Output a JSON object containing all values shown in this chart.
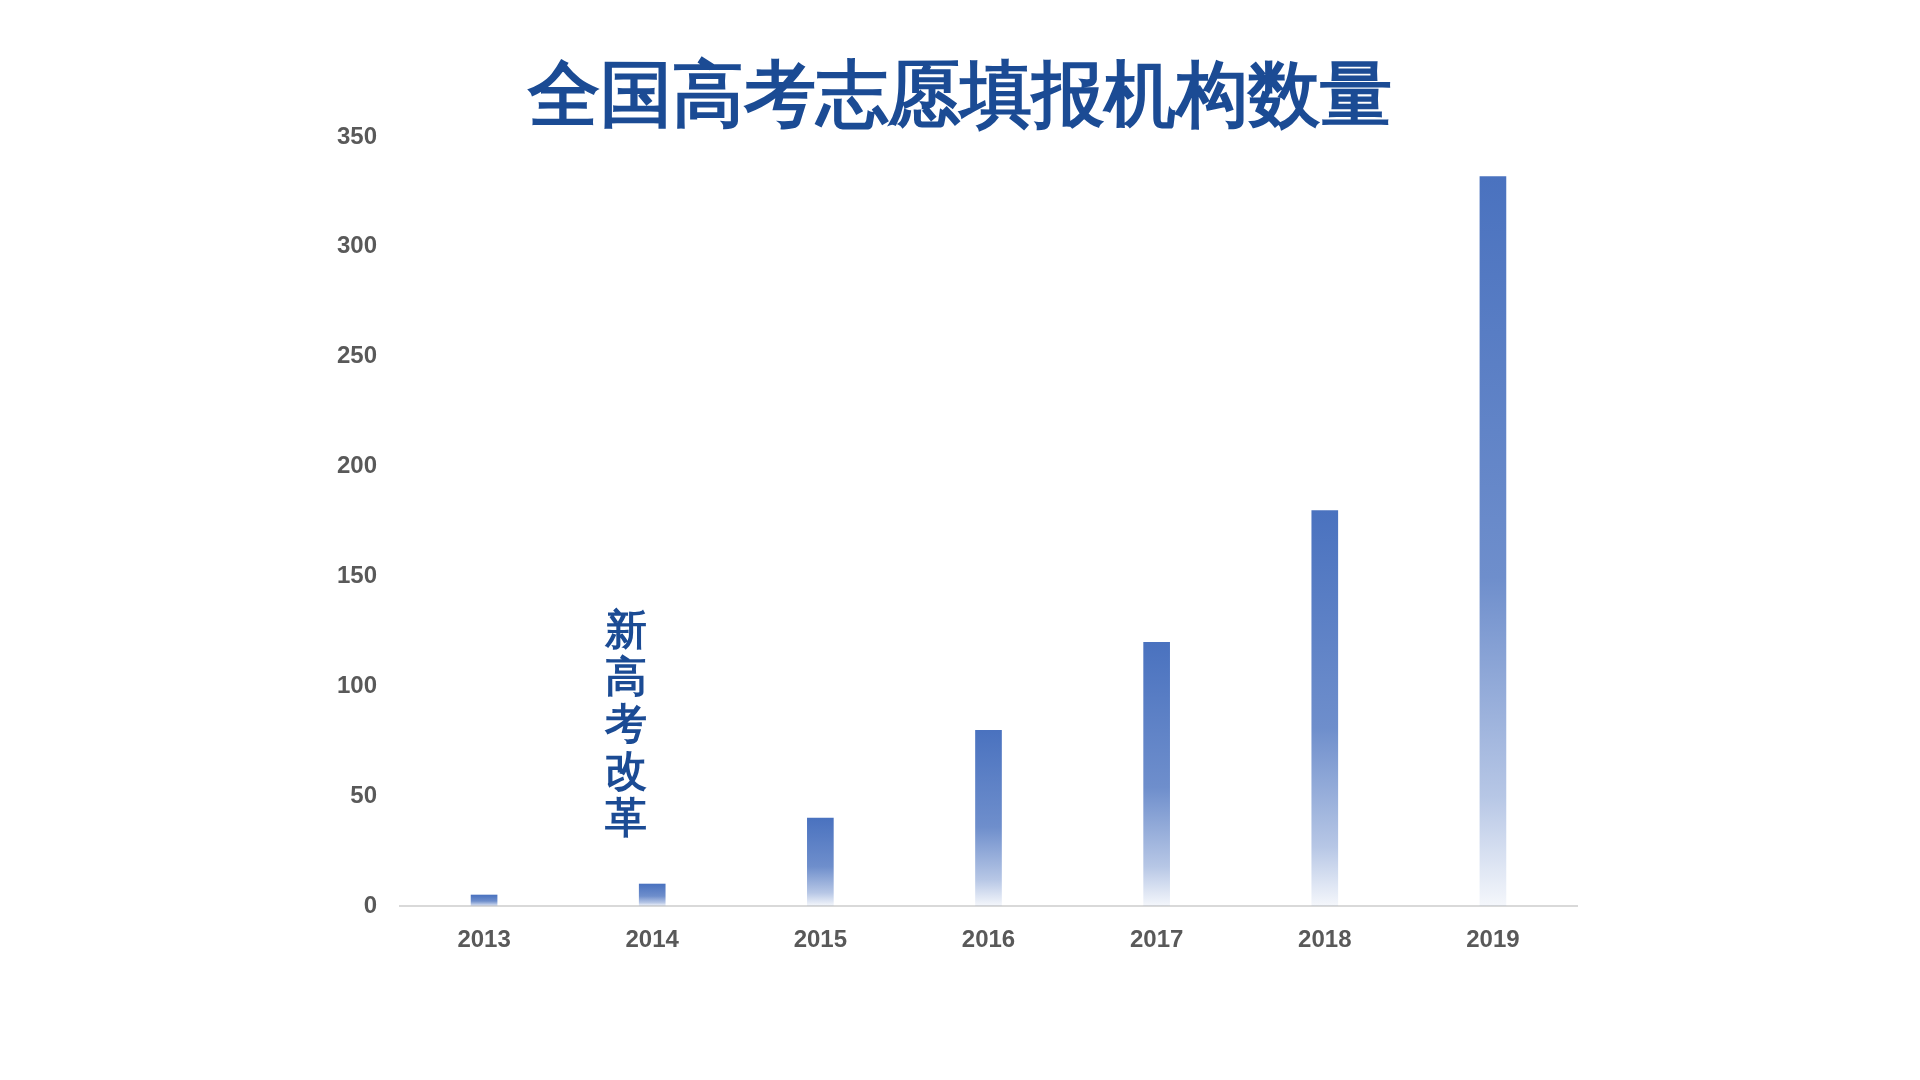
{
  "chart_data": {
    "type": "bar",
    "title": "全国高考志愿填报机构数量",
    "categories": [
      "2013",
      "2014",
      "2015",
      "2016",
      "2017",
      "2018",
      "2019"
    ],
    "values": [
      5,
      10,
      40,
      80,
      120,
      180,
      332
    ],
    "color": "#4a72bf",
    "ylim": [
      0,
      350
    ],
    "yticks": [
      0,
      50,
      100,
      150,
      200,
      250,
      300,
      350
    ],
    "grid": false,
    "legend": false,
    "annotations": [
      "新高考改革"
    ]
  }
}
